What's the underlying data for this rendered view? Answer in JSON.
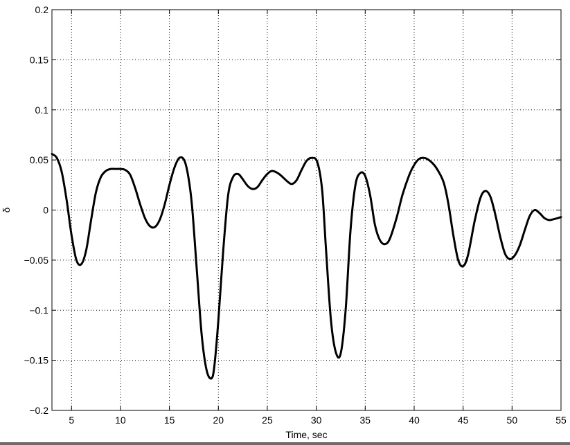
{
  "chart_data": {
    "type": "line",
    "xlabel": "Time, sec",
    "ylabel": "δ",
    "xlim": [
      3,
      55
    ],
    "ylim": [
      -0.2,
      0.2
    ],
    "xticks": [
      5,
      10,
      15,
      20,
      25,
      30,
      35,
      40,
      45,
      50,
      55
    ],
    "yticks": [
      -0.2,
      -0.15,
      -0.1,
      -0.05,
      0,
      0.05,
      0.1,
      0.15,
      0.2
    ],
    "xtick_labels": [
      "5",
      "10",
      "15",
      "20",
      "25",
      "30",
      "35",
      "40",
      "45",
      "50",
      "55"
    ],
    "ytick_labels": [
      "−0.2",
      "−0.15",
      "−0.1",
      "−0.05",
      "0",
      "0.05",
      "0.1",
      "0.15",
      "0.2"
    ],
    "grid": true,
    "colors": {
      "line": "#000000",
      "grid": "#000000",
      "background": "#ffffff"
    },
    "series": [
      {
        "x": [
          3.0,
          3.5,
          4.0,
          4.5,
          5.0,
          5.5,
          6.0,
          6.5,
          7.0,
          7.5,
          8.0,
          8.5,
          9.0,
          9.5,
          10.0,
          10.5,
          11.0,
          11.5,
          12.0,
          12.5,
          13.0,
          13.5,
          14.0,
          14.5,
          15.0,
          15.5,
          16.0,
          16.5,
          16.9,
          17.3,
          17.8,
          18.3,
          18.8,
          19.3,
          19.6,
          20.0,
          20.5,
          21.0,
          21.5,
          22.0,
          22.4,
          23.0,
          23.5,
          24.0,
          24.5,
          25.0,
          25.5,
          26.2,
          27.0,
          27.5,
          28.0,
          28.5,
          29.0,
          29.5,
          30.1,
          30.6,
          31.0,
          31.5,
          32.0,
          32.5,
          33.0,
          33.5,
          34.0,
          34.5,
          35.0,
          35.5,
          36.0,
          36.5,
          37.0,
          37.5,
          38.2,
          38.8,
          39.5,
          40.0,
          40.5,
          41.0,
          41.5,
          42.2,
          43.0,
          43.5,
          44.0,
          44.5,
          45.0,
          45.5,
          46.2,
          46.8,
          47.3,
          47.8,
          48.3,
          48.8,
          49.3,
          49.8,
          50.3,
          50.8,
          51.3,
          51.8,
          52.3,
          52.8,
          53.3,
          53.8,
          54.3,
          54.7,
          55.0
        ],
        "y": [
          0.056,
          0.052,
          0.038,
          0.01,
          -0.025,
          -0.05,
          -0.054,
          -0.04,
          -0.01,
          0.018,
          0.033,
          0.039,
          0.041,
          0.041,
          0.041,
          0.04,
          0.035,
          0.022,
          0.006,
          -0.008,
          -0.016,
          -0.017,
          -0.01,
          0.005,
          0.025,
          0.042,
          0.052,
          0.05,
          0.035,
          0.005,
          -0.06,
          -0.125,
          -0.16,
          -0.168,
          -0.155,
          -0.11,
          -0.04,
          0.015,
          0.033,
          0.036,
          0.032,
          0.024,
          0.021,
          0.023,
          0.03,
          0.036,
          0.039,
          0.036,
          0.029,
          0.026,
          0.03,
          0.04,
          0.049,
          0.052,
          0.048,
          0.02,
          -0.04,
          -0.11,
          -0.142,
          -0.143,
          -0.1,
          -0.02,
          0.025,
          0.037,
          0.034,
          0.015,
          -0.015,
          -0.03,
          -0.034,
          -0.029,
          -0.008,
          0.015,
          0.035,
          0.045,
          0.051,
          0.052,
          0.05,
          0.043,
          0.028,
          0.006,
          -0.025,
          -0.05,
          -0.056,
          -0.045,
          -0.01,
          0.013,
          0.019,
          0.013,
          -0.005,
          -0.027,
          -0.044,
          -0.049,
          -0.045,
          -0.035,
          -0.02,
          -0.006,
          0.0,
          -0.003,
          -0.008,
          -0.01,
          -0.009,
          -0.008,
          -0.007
        ]
      }
    ]
  }
}
